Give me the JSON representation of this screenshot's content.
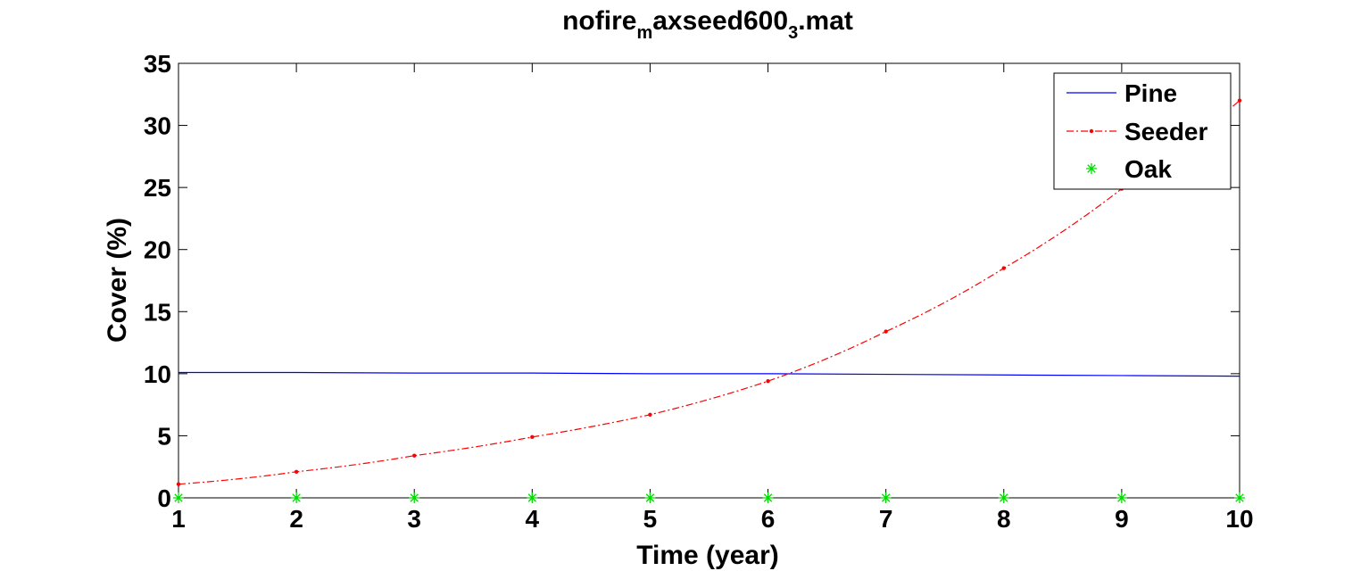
{
  "chart_data": {
    "type": "line",
    "title": {
      "part1": "nofire",
      "sub1": "m",
      "part2": "axseed600",
      "sub2": "3",
      "part3": ".mat"
    },
    "xlabel": "Time (year)",
    "ylabel": "Cover (%)",
    "xlim": [
      1,
      10
    ],
    "ylim": [
      0,
      35
    ],
    "xticks": [
      "1",
      "2",
      "3",
      "4",
      "5",
      "6",
      "7",
      "8",
      "9",
      "10"
    ],
    "yticks": [
      "0",
      "5",
      "10",
      "15",
      "20",
      "25",
      "30",
      "35"
    ],
    "x": [
      1,
      2,
      3,
      4,
      5,
      6,
      7,
      8,
      9,
      10
    ],
    "grid": false,
    "legend_position": "top-right",
    "series": [
      {
        "name": "Pine",
        "color": "#0000ff",
        "style": "solid",
        "values": [
          10.1,
          10.1,
          10.05,
          10.05,
          10.0,
          10.0,
          9.95,
          9.9,
          9.85,
          9.8
        ]
      },
      {
        "name": "Seeder",
        "color": "#ff0000",
        "style": "dash-dot-marker",
        "values": [
          1.1,
          2.1,
          3.4,
          4.9,
          6.7,
          9.4,
          13.4,
          18.5,
          24.9,
          32.0
        ]
      },
      {
        "name": "Oak",
        "color": "#00dd00",
        "style": "star-marker",
        "values": [
          0,
          0,
          0,
          0,
          0,
          0,
          0,
          0,
          0,
          0
        ]
      }
    ]
  }
}
